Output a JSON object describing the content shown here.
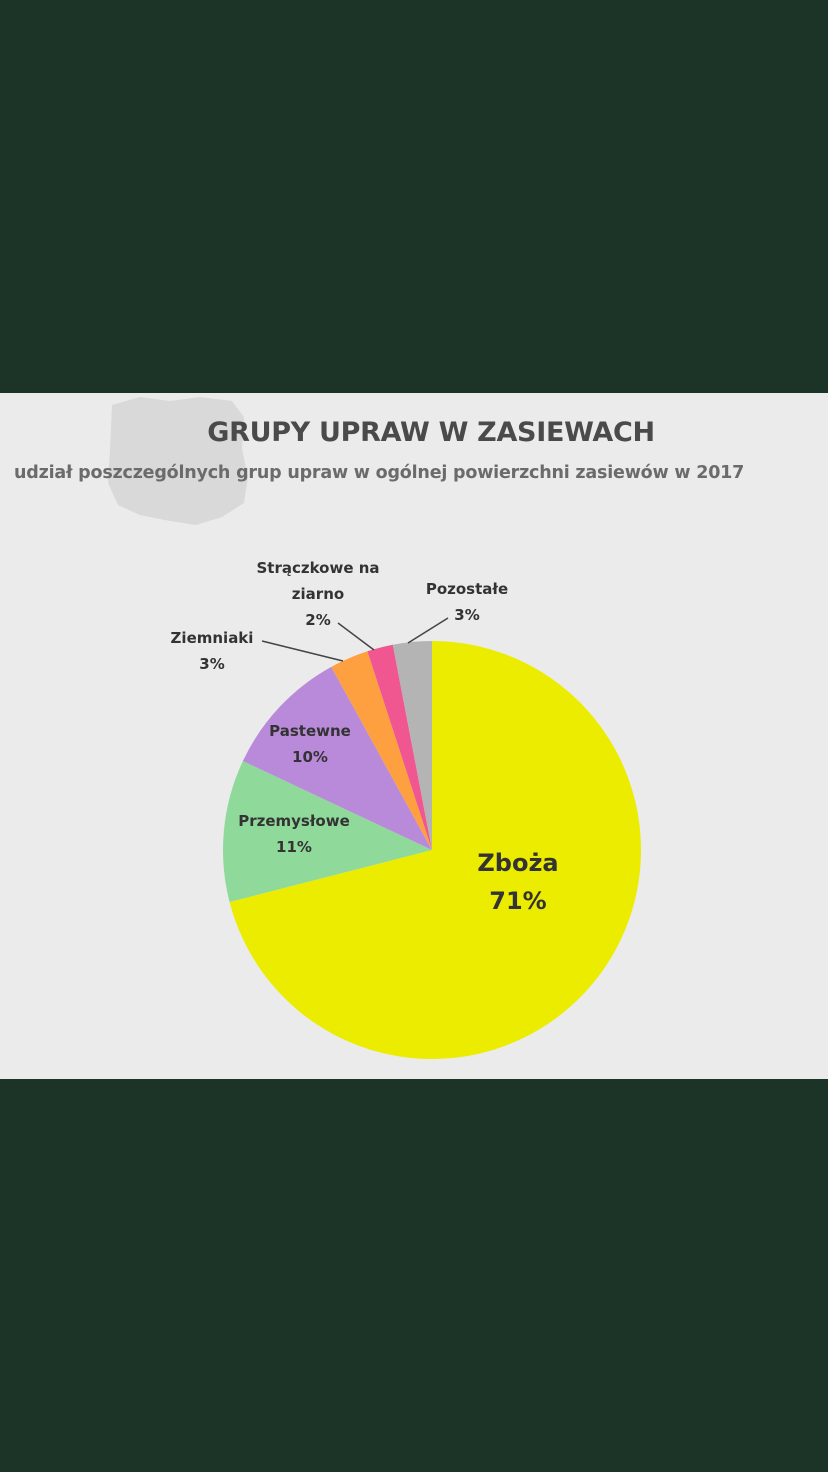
{
  "chart_data": {
    "type": "pie",
    "title": "GRUPY UPRAW W ZASIEWACH",
    "subtitle": "udział poszczególnych grup upraw w ogólnej powierzchni zasiewów w 2017",
    "categories": [
      "Zboża",
      "Przemysłowe",
      "Pastewne",
      "Ziemniaki",
      "Strączkowe na ziarno",
      "Pozostałe"
    ],
    "values": [
      71,
      11,
      10,
      3,
      2,
      3
    ],
    "value_labels": [
      "71%",
      "11%",
      "10%",
      "3%",
      "2%",
      "3%"
    ],
    "display_labels": [
      [
        "Zboża"
      ],
      [
        "Przemysłowe"
      ],
      [
        "Pastewne"
      ],
      [
        "Ziemniaki"
      ],
      [
        "Strączkowe na",
        "ziarno"
      ],
      [
        "Pozostałe"
      ]
    ],
    "colors": [
      "#ecec00",
      "#8fd99b",
      "#b98ad9",
      "#ffa040",
      "#f0568f",
      "#b4b4b4"
    ]
  }
}
